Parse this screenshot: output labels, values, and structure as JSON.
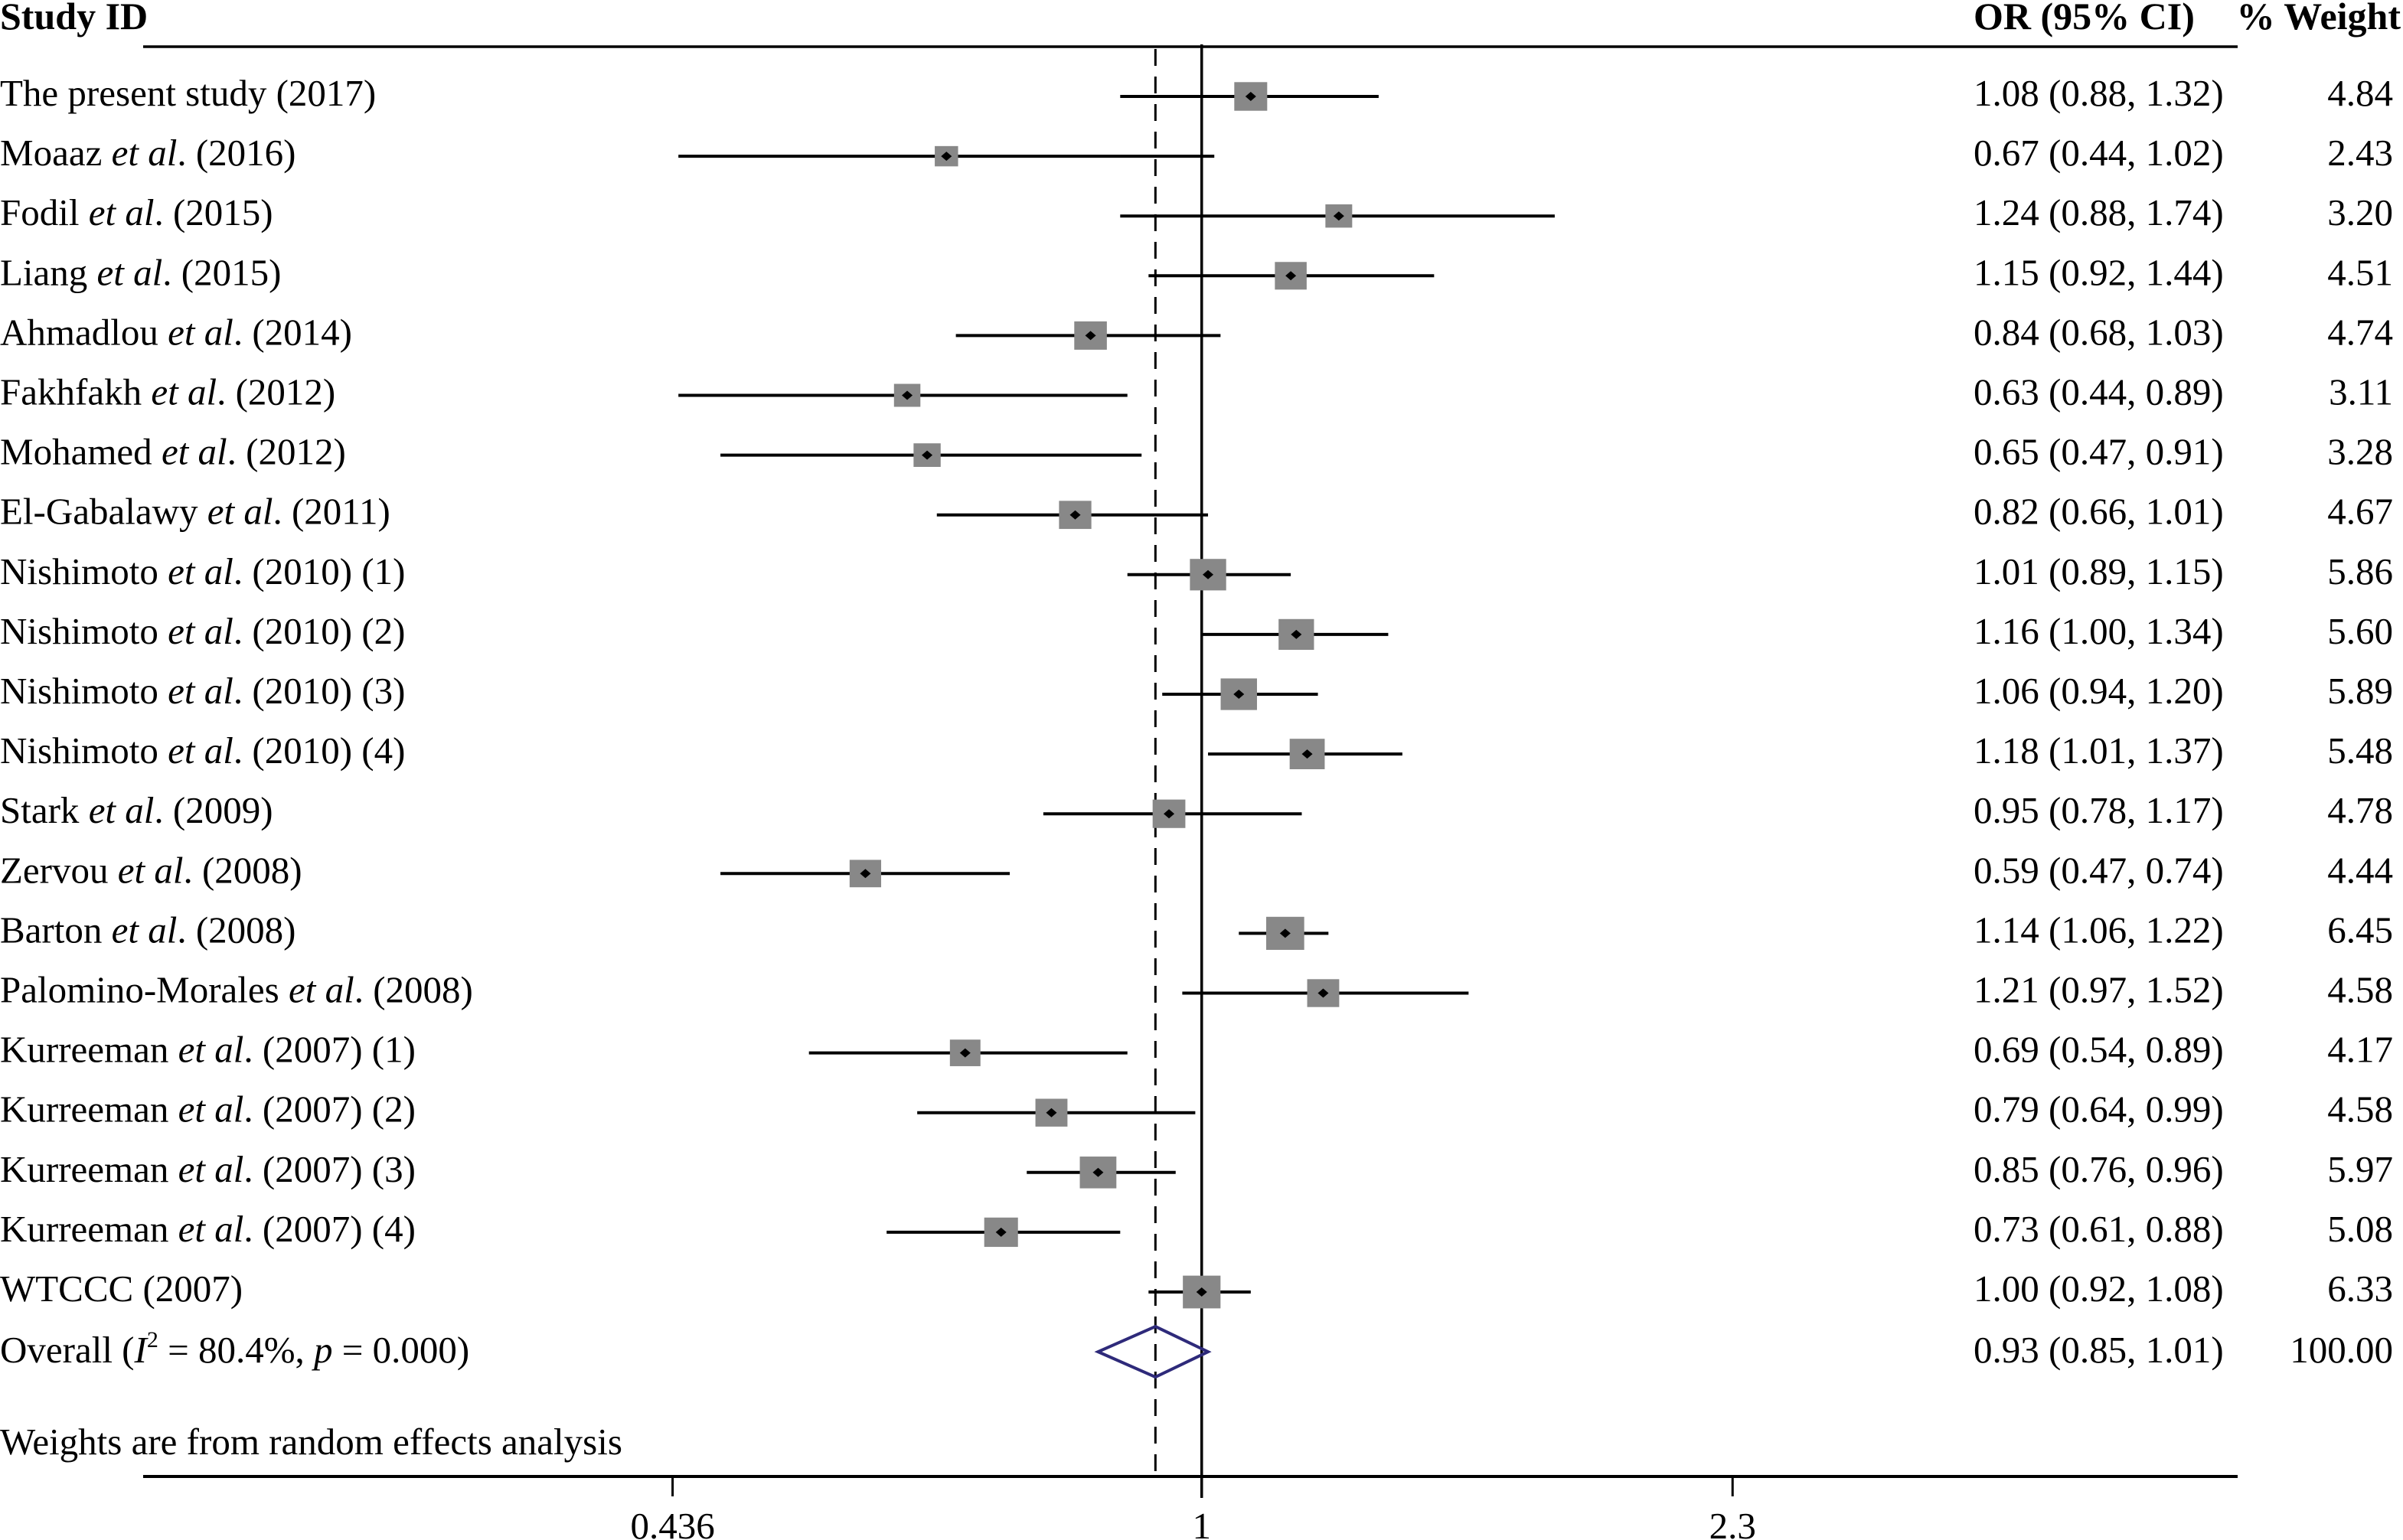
{
  "chart_data": {
    "type": "forest",
    "title": "",
    "headers": {
      "study": "Study ID",
      "or": "OR (95% CI)",
      "weight": "% Weight"
    },
    "scale": "log",
    "xlim": [
      0.19,
      5.08
    ],
    "null_value": 1,
    "ticks": [
      {
        "value": 0.436,
        "label": "0.436"
      },
      {
        "value": 1,
        "label": "1"
      },
      {
        "value": 2.3,
        "label": "2.3"
      }
    ],
    "studies": [
      {
        "name": "The present study",
        "etal": "",
        "rest": " (2017)",
        "or": 1.08,
        "lo": 0.88,
        "hi": 1.32,
        "or_text": "1.08 (0.88, 1.32)",
        "weight": 4.84,
        "weight_text": "4.84"
      },
      {
        "name": "Moaaz ",
        "etal": "et al",
        "rest": ". (2016)",
        "or": 0.67,
        "lo": 0.44,
        "hi": 1.02,
        "or_text": "0.67 (0.44, 1.02)",
        "weight": 2.43,
        "weight_text": "2.43"
      },
      {
        "name": "Fodil ",
        "etal": "et al",
        "rest": ". (2015)",
        "or": 1.24,
        "lo": 0.88,
        "hi": 1.74,
        "or_text": "1.24 (0.88, 1.74)",
        "weight": 3.2,
        "weight_text": "3.20"
      },
      {
        "name": "Liang ",
        "etal": "et al",
        "rest": ". (2015)",
        "or": 1.15,
        "lo": 0.92,
        "hi": 1.44,
        "or_text": "1.15 (0.92, 1.44)",
        "weight": 4.51,
        "weight_text": "4.51"
      },
      {
        "name": "Ahmadlou ",
        "etal": "et al",
        "rest": ". (2014)",
        "or": 0.84,
        "lo": 0.68,
        "hi": 1.03,
        "or_text": "0.84 (0.68, 1.03)",
        "weight": 4.74,
        "weight_text": "4.74"
      },
      {
        "name": "Fakhfakh ",
        "etal": "et al",
        "rest": ". (2012)",
        "or": 0.63,
        "lo": 0.44,
        "hi": 0.89,
        "or_text": "0.63 (0.44, 0.89)",
        "weight": 3.11,
        "weight_text": "3.11"
      },
      {
        "name": "Mohamed ",
        "etal": "et al",
        "rest": ". (2012)",
        "or": 0.65,
        "lo": 0.47,
        "hi": 0.91,
        "or_text": "0.65 (0.47, 0.91)",
        "weight": 3.28,
        "weight_text": "3.28"
      },
      {
        "name": "El-Gabalawy ",
        "etal": "et al",
        "rest": ". (2011)",
        "or": 0.82,
        "lo": 0.66,
        "hi": 1.01,
        "or_text": "0.82 (0.66, 1.01)",
        "weight": 4.67,
        "weight_text": "4.67"
      },
      {
        "name": "Nishimoto ",
        "etal": "et al",
        "rest": ". (2010) (1)",
        "or": 1.01,
        "lo": 0.89,
        "hi": 1.15,
        "or_text": "1.01 (0.89, 1.15)",
        "weight": 5.86,
        "weight_text": "5.86"
      },
      {
        "name": "Nishimoto ",
        "etal": "et al",
        "rest": ". (2010) (2)",
        "or": 1.16,
        "lo": 1.0,
        "hi": 1.34,
        "or_text": "1.16 (1.00, 1.34)",
        "weight": 5.6,
        "weight_text": "5.60"
      },
      {
        "name": "Nishimoto ",
        "etal": "et al",
        "rest": ". (2010) (3)",
        "or": 1.06,
        "lo": 0.94,
        "hi": 1.2,
        "or_text": "1.06 (0.94, 1.20)",
        "weight": 5.89,
        "weight_text": "5.89"
      },
      {
        "name": "Nishimoto ",
        "etal": "et al",
        "rest": ". (2010) (4)",
        "or": 1.18,
        "lo": 1.01,
        "hi": 1.37,
        "or_text": "1.18 (1.01, 1.37)",
        "weight": 5.48,
        "weight_text": "5.48"
      },
      {
        "name": "Stark ",
        "etal": "et al",
        "rest": ". (2009)",
        "or": 0.95,
        "lo": 0.78,
        "hi": 1.17,
        "or_text": "0.95 (0.78, 1.17)",
        "weight": 4.78,
        "weight_text": "4.78"
      },
      {
        "name": "Zervou ",
        "etal": "et al",
        "rest": ". (2008)",
        "or": 0.59,
        "lo": 0.47,
        "hi": 0.74,
        "or_text": "0.59 (0.47, 0.74)",
        "weight": 4.44,
        "weight_text": "4.44"
      },
      {
        "name": "Barton ",
        "etal": "et al",
        "rest": ". (2008)",
        "or": 1.14,
        "lo": 1.06,
        "hi": 1.22,
        "or_text": "1.14 (1.06, 1.22)",
        "weight": 6.45,
        "weight_text": "6.45"
      },
      {
        "name": "Palomino-Morales ",
        "etal": "et al",
        "rest": ". (2008)",
        "or": 1.21,
        "lo": 0.97,
        "hi": 1.52,
        "or_text": "1.21 (0.97, 1.52)",
        "weight": 4.58,
        "weight_text": "4.58"
      },
      {
        "name": "Kurreeman ",
        "etal": "et al",
        "rest": ". (2007) (1)",
        "or": 0.69,
        "lo": 0.54,
        "hi": 0.89,
        "or_text": "0.69 (0.54, 0.89)",
        "weight": 4.17,
        "weight_text": "4.17"
      },
      {
        "name": "Kurreeman ",
        "etal": "et al",
        "rest": ". (2007) (2)",
        "or": 0.79,
        "lo": 0.64,
        "hi": 0.99,
        "or_text": "0.79 (0.64, 0.99)",
        "weight": 4.58,
        "weight_text": "4.58"
      },
      {
        "name": "Kurreeman ",
        "etal": "et al",
        "rest": ". (2007) (3)",
        "or": 0.85,
        "lo": 0.76,
        "hi": 0.96,
        "or_text": "0.85 (0.76, 0.96)",
        "weight": 5.97,
        "weight_text": "5.97"
      },
      {
        "name": "Kurreeman ",
        "etal": "et al",
        "rest": ". (2007) (4)",
        "or": 0.73,
        "lo": 0.61,
        "hi": 0.88,
        "or_text": "0.73 (0.61, 0.88)",
        "weight": 5.08,
        "weight_text": "5.08"
      },
      {
        "name": "WTCCC (2007)",
        "etal": "",
        "rest": "",
        "or": 1.0,
        "lo": 0.92,
        "hi": 1.08,
        "or_text": "1.00 (0.92, 1.08)",
        "weight": 6.33,
        "weight_text": "6.33"
      }
    ],
    "overall": {
      "label_parts": {
        "a": "Overall (",
        "i": "I",
        "sup": "2",
        "b": " = 80.4%, ",
        "p": "p",
        "c": " = 0.000)"
      },
      "or": 0.93,
      "lo": 0.85,
      "hi": 1.01,
      "or_text": "0.93 (0.85, 1.01)",
      "weight_text": "100.00"
    },
    "footnote": "Weights are from random effects analysis",
    "colors": {
      "box": "#888888",
      "line": "#000000",
      "diamond": "#2e2a7a"
    }
  }
}
